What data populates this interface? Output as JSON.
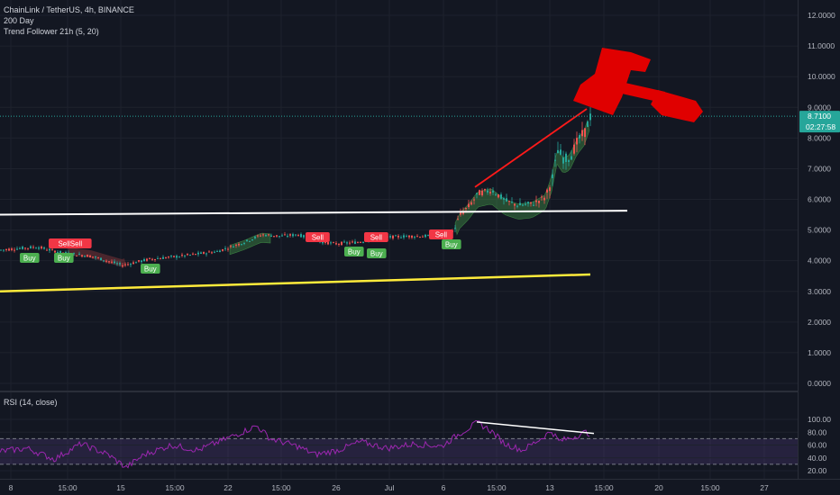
{
  "header": {
    "symbol_line": "ChainLink / TetherUS, 4h, BINANCE",
    "indicator_1": "200 Day",
    "indicator_2": "Trend Follower 21h (5, 20)"
  },
  "rsi": {
    "label": "RSI (14, close)",
    "levels": [
      "100.00",
      "80.00",
      "60.00",
      "40.00",
      "20.00"
    ],
    "band": [
      30,
      70
    ]
  },
  "price_axis": {
    "ticks": [
      "12.0000",
      "11.0000",
      "10.0000",
      "9.0000",
      "8.0000",
      "7.0000",
      "6.0000",
      "5.0000",
      "4.0000",
      "3.0000",
      "2.0000",
      "1.0000",
      "0.0000"
    ],
    "last_price": "8.7100",
    "countdown": "02:27:58"
  },
  "time_axis": {
    "ticks": [
      "8",
      "15:00",
      "15",
      "15:00",
      "22",
      "15:00",
      "26",
      "Jul",
      "6",
      "15:00",
      "13",
      "15:00",
      "20",
      "15:00",
      "27"
    ]
  },
  "signals": {
    "buy": "Buy",
    "sell": "Sell",
    "sellsell": "SellSell"
  },
  "colors": {
    "background": "#131722",
    "grid": "#1e222d",
    "up": "#26a69a",
    "down": "#ef5350",
    "buy_badge": "#4caf50",
    "sell_badge": "#f23645",
    "resistance_line": "#ffffff",
    "ma_200": "#ffeb3b",
    "rsi_line": "#9c27b0",
    "gavel": "#e00000",
    "price_label_bg": "#26a69a"
  },
  "chart_data": {
    "type": "candlestick",
    "ylim": [
      0,
      12
    ],
    "rsi_ylim": [
      20,
      100
    ],
    "last_price": 8.71
  }
}
